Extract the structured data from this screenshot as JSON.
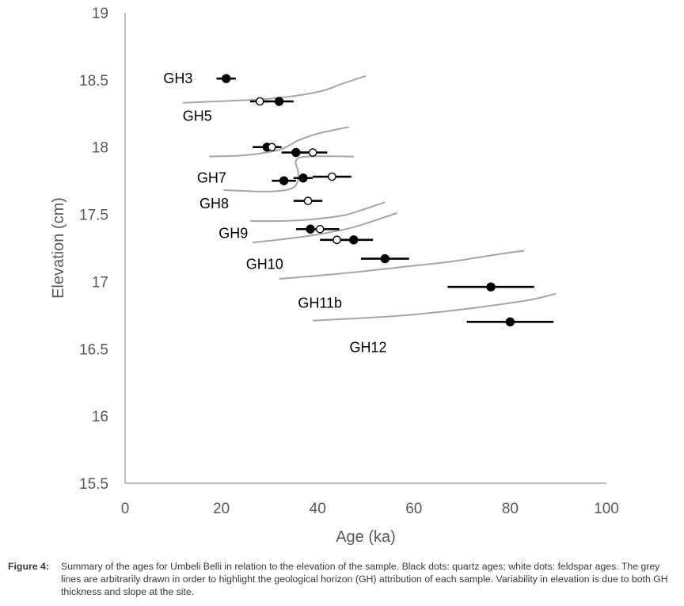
{
  "chart_data": {
    "type": "scatter",
    "xlabel": "Age (ka)",
    "ylabel": "Elevation (cm)",
    "xlim": [
      0,
      100
    ],
    "ylim": [
      15.5,
      19
    ],
    "x_ticks": [
      "0",
      "20",
      "40",
      "60",
      "80",
      "100"
    ],
    "y_ticks": [
      "15.5",
      "16",
      "16.5",
      "17",
      "17.5",
      "18",
      "18.5",
      "19"
    ],
    "grid": false,
    "colors": {
      "quartz": "#000000",
      "feldspar": "#ffffff",
      "horizon_line": "#a6a6a6",
      "axis": "#a6a6a6",
      "tick_text": "#595959"
    },
    "series": [
      {
        "name": "quartz ages",
        "marker": "black dot",
        "points": [
          {
            "x": 21,
            "y": 18.51,
            "xerr": 2
          },
          {
            "x": 32,
            "y": 18.34,
            "xerr": 3
          },
          {
            "x": 29.5,
            "y": 18.0,
            "xerr": 3
          },
          {
            "x": 35.5,
            "y": 17.96,
            "xerr": 3
          },
          {
            "x": 33,
            "y": 17.75,
            "xerr": 2.5
          },
          {
            "x": 37,
            "y": 17.77,
            "xerr": 2
          },
          {
            "x": 38.5,
            "y": 17.39,
            "xerr": 3
          },
          {
            "x": 47.5,
            "y": 17.31,
            "xerr": 4
          },
          {
            "x": 54,
            "y": 17.17,
            "xerr": 5
          },
          {
            "x": 76,
            "y": 16.96,
            "xerr": 9
          },
          {
            "x": 80,
            "y": 16.7,
            "xerr": 9
          }
        ]
      },
      {
        "name": "feldspar ages",
        "marker": "white dot",
        "points": [
          {
            "x": 28,
            "y": 18.34,
            "xerr": 2
          },
          {
            "x": 30.5,
            "y": 18.0,
            "xerr": 1.5
          },
          {
            "x": 39,
            "y": 17.96,
            "xerr": 3
          },
          {
            "x": 43,
            "y": 17.78,
            "xerr": 4
          },
          {
            "x": 38,
            "y": 17.6,
            "xerr": 3
          },
          {
            "x": 40.5,
            "y": 17.39,
            "xerr": 4
          },
          {
            "x": 44,
            "y": 17.31,
            "xerr": 3.5
          }
        ]
      }
    ],
    "horizon_lines": [
      [
        [
          12,
          18.33
        ],
        [
          30,
          18.36
        ],
        [
          40,
          18.41
        ],
        [
          45,
          18.47
        ],
        [
          50,
          18.53
        ]
      ],
      [
        [
          17.5,
          17.93
        ],
        [
          25,
          17.94
        ],
        [
          32,
          17.98
        ],
        [
          36,
          18.05
        ],
        [
          40,
          18.1
        ],
        [
          46.5,
          18.15
        ]
      ],
      [
        [
          20.5,
          17.68
        ],
        [
          30,
          17.67
        ],
        [
          35,
          17.7
        ],
        [
          36,
          17.8
        ],
        [
          35.5,
          17.9
        ],
        [
          38,
          17.93
        ],
        [
          47.5,
          17.93
        ]
      ],
      [
        [
          26,
          17.45
        ],
        [
          32,
          17.45
        ],
        [
          38,
          17.46
        ],
        [
          45,
          17.49
        ],
        [
          49,
          17.53
        ],
        [
          54,
          17.59
        ]
      ],
      [
        [
          26.5,
          17.29
        ],
        [
          34,
          17.32
        ],
        [
          40,
          17.35
        ],
        [
          47,
          17.4
        ],
        [
          51.5,
          17.45
        ],
        [
          56.5,
          17.51
        ]
      ],
      [
        [
          32,
          17.02
        ],
        [
          45,
          17.06
        ],
        [
          58,
          17.11
        ],
        [
          68,
          17.15
        ],
        [
          77,
          17.2
        ],
        [
          83,
          17.23
        ]
      ],
      [
        [
          39,
          16.71
        ],
        [
          55,
          16.74
        ],
        [
          67,
          16.78
        ],
        [
          78,
          16.83
        ],
        [
          85,
          16.87
        ],
        [
          89.5,
          16.91
        ]
      ]
    ],
    "annotations": [
      {
        "text": "GH3",
        "x": 11,
        "y": 18.51
      },
      {
        "text": "GH5",
        "x": 15,
        "y": 18.23
      },
      {
        "text": "GH7",
        "x": 18,
        "y": 17.77
      },
      {
        "text": "GH8",
        "x": 18.5,
        "y": 17.58
      },
      {
        "text": "GH9",
        "x": 22.5,
        "y": 17.36
      },
      {
        "text": "GH10",
        "x": 29,
        "y": 17.13
      },
      {
        "text": "GH11b",
        "x": 40.5,
        "y": 16.84
      },
      {
        "text": "GH12",
        "x": 50.5,
        "y": 16.51
      }
    ]
  },
  "caption": {
    "label": "Figure 4:",
    "text": "Summary of the ages for Umbeli Belli in relation to the elevation of the sample. Black dots: quartz ages; white dots: feldspar ages. The grey lines are arbitrarily drawn in order to highlight the geological horizon (GH) attribution of each sample. Variability in elevation is due to both GH thickness and slope at the site."
  }
}
